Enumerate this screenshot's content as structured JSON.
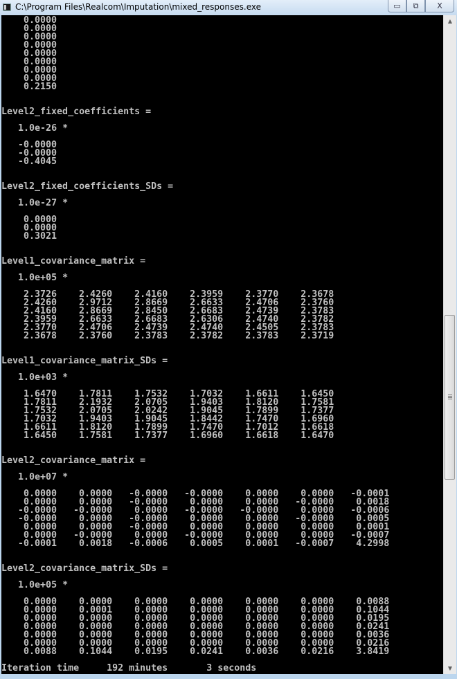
{
  "window": {
    "title": "C:\\Program Files\\Realcom\\Imputation\\mixed_responses.exe",
    "controls": {
      "minimize": "▭",
      "maximize": "⧉",
      "close": "X"
    }
  },
  "console": {
    "text_color": "#c0c0c0",
    "background": "#000000",
    "sections": [
      {
        "title": "",
        "scale": "",
        "rows": [
          [
            "0.0000"
          ],
          [
            "0.0000"
          ],
          [
            "0.0000"
          ],
          [
            "0.0000"
          ],
          [
            "0.0000"
          ],
          [
            "0.0000"
          ],
          [
            "0.0000"
          ],
          [
            "0.0000"
          ],
          [
            "0.2150"
          ]
        ]
      },
      {
        "title": "Level2_fixed_coefficients =",
        "scale": "1.0e-26 *",
        "rows": [
          [
            "-0.0000"
          ],
          [
            "-0.0000"
          ],
          [
            "-0.4045"
          ]
        ]
      },
      {
        "title": "Level2_fixed_coefficients_SDs =",
        "scale": "1.0e-27 *",
        "rows": [
          [
            "0.0000"
          ],
          [
            "0.0000"
          ],
          [
            "0.3021"
          ]
        ]
      },
      {
        "title": "Level1_covariance_matrix =",
        "scale": "1.0e+05 *",
        "rows": [
          [
            "2.3726",
            "2.4260",
            "2.4160",
            "2.3959",
            "2.3770",
            "2.3678"
          ],
          [
            "2.4260",
            "2.9712",
            "2.8669",
            "2.6633",
            "2.4706",
            "2.3760"
          ],
          [
            "2.4160",
            "2.8669",
            "2.8450",
            "2.6683",
            "2.4739",
            "2.3783"
          ],
          [
            "2.3959",
            "2.6633",
            "2.6683",
            "2.6306",
            "2.4740",
            "2.3782"
          ],
          [
            "2.3770",
            "2.4706",
            "2.4739",
            "2.4740",
            "2.4505",
            "2.3783"
          ],
          [
            "2.3678",
            "2.3760",
            "2.3783",
            "2.3782",
            "2.3783",
            "2.3719"
          ]
        ]
      },
      {
        "title": "Level1_covariance_matrix_SDs =",
        "scale": "1.0e+03 *",
        "rows": [
          [
            "1.6470",
            "1.7811",
            "1.7532",
            "1.7032",
            "1.6611",
            "1.6450"
          ],
          [
            "1.7811",
            "2.1932",
            "2.0705",
            "1.9403",
            "1.8120",
            "1.7581"
          ],
          [
            "1.7532",
            "2.0705",
            "2.0242",
            "1.9045",
            "1.7899",
            "1.7377"
          ],
          [
            "1.7032",
            "1.9403",
            "1.9045",
            "1.8442",
            "1.7470",
            "1.6960"
          ],
          [
            "1.6611",
            "1.8120",
            "1.7899",
            "1.7470",
            "1.7012",
            "1.6618"
          ],
          [
            "1.6450",
            "1.7581",
            "1.7377",
            "1.6960",
            "1.6618",
            "1.6470"
          ]
        ]
      },
      {
        "title": "Level2_covariance_matrix =",
        "scale": "1.0e+07 *",
        "rows": [
          [
            "0.0000",
            "0.0000",
            "-0.0000",
            "-0.0000",
            "0.0000",
            "0.0000",
            "-0.0001"
          ],
          [
            "0.0000",
            "0.0000",
            "-0.0000",
            "0.0000",
            "0.0000",
            "-0.0000",
            "0.0018"
          ],
          [
            "-0.0000",
            "-0.0000",
            "0.0000",
            "-0.0000",
            "-0.0000",
            "0.0000",
            "-0.0006"
          ],
          [
            "-0.0000",
            "0.0000",
            "-0.0000",
            "0.0000",
            "0.0000",
            "-0.0000",
            "0.0005"
          ],
          [
            "0.0000",
            "0.0000",
            "-0.0000",
            "0.0000",
            "0.0000",
            "0.0000",
            "0.0001"
          ],
          [
            "0.0000",
            "-0.0000",
            "0.0000",
            "-0.0000",
            "0.0000",
            "0.0000",
            "-0.0007"
          ],
          [
            "-0.0001",
            "0.0018",
            "-0.0006",
            "0.0005",
            "0.0001",
            "-0.0007",
            "4.2998"
          ]
        ]
      },
      {
        "title": "Level2_covariance_matrix_SDs =",
        "scale": "1.0e+05 *",
        "rows": [
          [
            "0.0000",
            "0.0000",
            "0.0000",
            "0.0000",
            "0.0000",
            "0.0000",
            "0.0088"
          ],
          [
            "0.0000",
            "0.0001",
            "0.0000",
            "0.0000",
            "0.0000",
            "0.0000",
            "0.1044"
          ],
          [
            "0.0000",
            "0.0000",
            "0.0000",
            "0.0000",
            "0.0000",
            "0.0000",
            "0.0195"
          ],
          [
            "0.0000",
            "0.0000",
            "0.0000",
            "0.0000",
            "0.0000",
            "0.0000",
            "0.0241"
          ],
          [
            "0.0000",
            "0.0000",
            "0.0000",
            "0.0000",
            "0.0000",
            "0.0000",
            "0.0036"
          ],
          [
            "0.0000",
            "0.0000",
            "0.0000",
            "0.0000",
            "0.0000",
            "0.0000",
            "0.0216"
          ],
          [
            "0.0088",
            "0.1044",
            "0.0195",
            "0.0241",
            "0.0036",
            "0.0216",
            "3.8419"
          ]
        ]
      }
    ],
    "iteration": {
      "label": "Iteration time",
      "minutes": "192 minutes",
      "seconds": "3 seconds"
    }
  },
  "scrollbar": {
    "up_icon": "▲",
    "down_icon": "▼",
    "position_fraction": 0.6
  }
}
